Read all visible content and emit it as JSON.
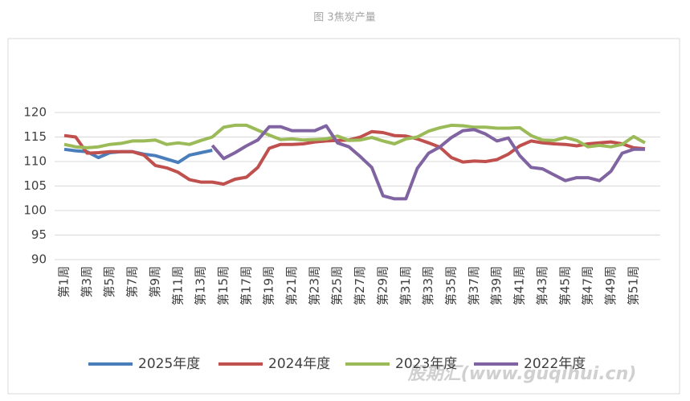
{
  "chart_data": {
    "type": "line",
    "title": "图 3焦炭产量",
    "watermark": "股期汇(www.guqihui.cn)",
    "categories": [
      "第1周",
      null,
      "第3周",
      null,
      "第5周",
      null,
      "第7周",
      null,
      "第9周",
      null,
      "第11周",
      null,
      "第13周",
      null,
      "第15周",
      null,
      "第17周",
      null,
      "第19周",
      null,
      "第21周",
      null,
      "第23周",
      null,
      "第25周",
      null,
      "第27周",
      null,
      "第29周",
      null,
      "第31周",
      null,
      "第33周",
      null,
      "第35周",
      null,
      "第37周",
      null,
      "第39周",
      null,
      "第41周",
      null,
      "第43周",
      null,
      "第45周",
      null,
      "第47周",
      null,
      "第49周",
      null,
      "第51周",
      null
    ],
    "ylim": [
      90,
      120
    ],
    "yticks": [
      90,
      95,
      100,
      105,
      110,
      115,
      120
    ],
    "grid": true,
    "legend": "bottom",
    "series": [
      {
        "name": "2025年度",
        "color": "#4a7ebb",
        "values": [
          112.5,
          112.2,
          112.0,
          110.8,
          111.8,
          112.0,
          112.0,
          111.5,
          111.2,
          110.5,
          109.8,
          111.3,
          111.8,
          112.3,
          null,
          null,
          null,
          null,
          null,
          null,
          null,
          null,
          null,
          null,
          null,
          null,
          null,
          null,
          null,
          null,
          null,
          null,
          null,
          null,
          null,
          null,
          null,
          null,
          null,
          null,
          null,
          null,
          null,
          null,
          null,
          null,
          null,
          null,
          null,
          null,
          null,
          null
        ]
      },
      {
        "name": "2024年度",
        "color": "#c0504d",
        "values": [
          115.3,
          115.0,
          111.7,
          111.8,
          112.0,
          112.0,
          112.0,
          111.3,
          109.2,
          108.7,
          107.8,
          106.3,
          105.8,
          105.8,
          105.4,
          106.4,
          106.8,
          108.8,
          112.7,
          113.5,
          113.5,
          113.6,
          114.0,
          114.2,
          114.3,
          114.4,
          115.0,
          116.1,
          115.9,
          115.3,
          115.2,
          114.6,
          113.8,
          112.9,
          110.8,
          109.9,
          110.1,
          110.0,
          110.4,
          111.5,
          113.2,
          114.2,
          113.8,
          113.6,
          113.5,
          113.2,
          113.6,
          113.8,
          114.0,
          113.6,
          112.8,
          112.6
        ]
      },
      {
        "name": "2023年度",
        "color": "#9bbb59",
        "values": [
          113.5,
          113.0,
          112.8,
          113.0,
          113.5,
          113.7,
          114.2,
          114.2,
          114.4,
          113.5,
          113.8,
          113.5,
          114.3,
          115.0,
          117.0,
          117.4,
          117.4,
          116.4,
          115.4,
          114.5,
          114.6,
          114.4,
          114.5,
          114.6,
          115.2,
          114.3,
          114.4,
          114.9,
          114.2,
          113.6,
          114.6,
          115.0,
          116.2,
          116.9,
          117.4,
          117.3,
          117.0,
          117.0,
          116.8,
          116.8,
          116.9,
          115.3,
          114.4,
          114.3,
          114.9,
          114.3,
          113.0,
          113.3,
          113.0,
          113.5,
          115.1,
          113.8
        ]
      },
      {
        "name": "2022年度",
        "color": "#8064a2",
        "values": [
          null,
          null,
          null,
          null,
          null,
          null,
          null,
          null,
          null,
          null,
          null,
          null,
          null,
          113.3,
          110.6,
          111.8,
          113.2,
          114.4,
          117.1,
          117.1,
          116.3,
          116.3,
          116.3,
          117.3,
          113.8,
          113.0,
          111.0,
          108.8,
          103.0,
          102.4,
          102.4,
          108.6,
          111.7,
          113.0,
          114.9,
          116.3,
          116.5,
          115.6,
          114.2,
          114.8,
          111.2,
          108.8,
          108.5,
          107.3,
          106.1,
          106.7,
          106.7,
          106.1,
          108.0,
          111.7,
          112.5,
          112.5
        ]
      }
    ]
  }
}
